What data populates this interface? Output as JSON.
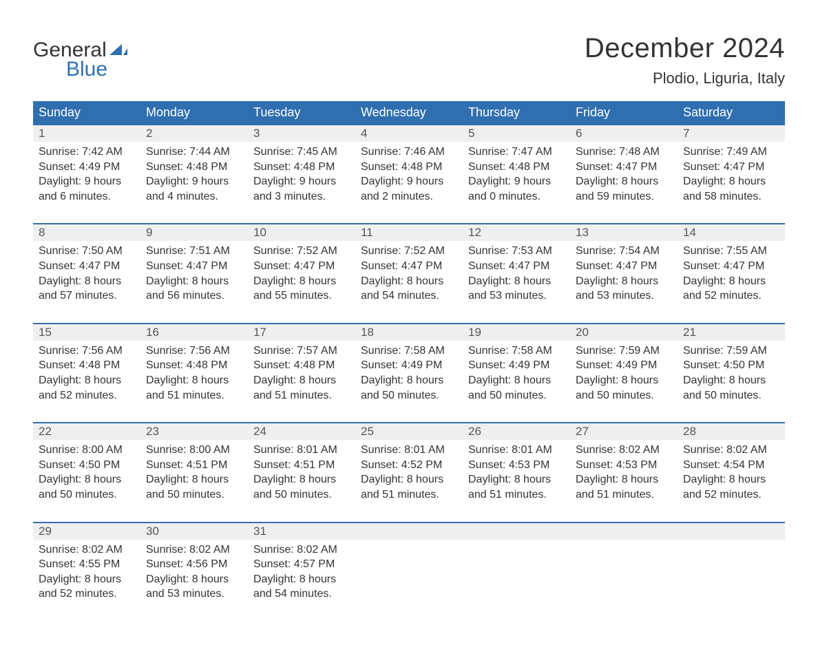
{
  "logo": {
    "word1": "General",
    "word2": "Blue",
    "word1_color": "#333333",
    "word2_color": "#2f6fb0",
    "sail_color": "#2f6fb0"
  },
  "title": "December 2024",
  "location": "Plodio, Liguria, Italy",
  "colors": {
    "header_bg": "#2f6fb0",
    "header_text": "#ffffff",
    "daynum_bg": "#efefef",
    "daynum_border": "#2f6fb0",
    "text": "#333333",
    "background": "#ffffff"
  },
  "typography": {
    "title_fontsize": 40,
    "location_fontsize": 22,
    "header_fontsize": 18,
    "daynum_fontsize": 17,
    "body_fontsize": 16,
    "font_family": "Arial, Helvetica, sans-serif"
  },
  "day_headers": [
    "Sunday",
    "Monday",
    "Tuesday",
    "Wednesday",
    "Thursday",
    "Friday",
    "Saturday"
  ],
  "weeks": [
    [
      {
        "num": "1",
        "sunrise": "Sunrise: 7:42 AM",
        "sunset": "Sunset: 4:49 PM",
        "dl1": "Daylight: 9 hours",
        "dl2": "and 6 minutes."
      },
      {
        "num": "2",
        "sunrise": "Sunrise: 7:44 AM",
        "sunset": "Sunset: 4:48 PM",
        "dl1": "Daylight: 9 hours",
        "dl2": "and 4 minutes."
      },
      {
        "num": "3",
        "sunrise": "Sunrise: 7:45 AM",
        "sunset": "Sunset: 4:48 PM",
        "dl1": "Daylight: 9 hours",
        "dl2": "and 3 minutes."
      },
      {
        "num": "4",
        "sunrise": "Sunrise: 7:46 AM",
        "sunset": "Sunset: 4:48 PM",
        "dl1": "Daylight: 9 hours",
        "dl2": "and 2 minutes."
      },
      {
        "num": "5",
        "sunrise": "Sunrise: 7:47 AM",
        "sunset": "Sunset: 4:48 PM",
        "dl1": "Daylight: 9 hours",
        "dl2": "and 0 minutes."
      },
      {
        "num": "6",
        "sunrise": "Sunrise: 7:48 AM",
        "sunset": "Sunset: 4:47 PM",
        "dl1": "Daylight: 8 hours",
        "dl2": "and 59 minutes."
      },
      {
        "num": "7",
        "sunrise": "Sunrise: 7:49 AM",
        "sunset": "Sunset: 4:47 PM",
        "dl1": "Daylight: 8 hours",
        "dl2": "and 58 minutes."
      }
    ],
    [
      {
        "num": "8",
        "sunrise": "Sunrise: 7:50 AM",
        "sunset": "Sunset: 4:47 PM",
        "dl1": "Daylight: 8 hours",
        "dl2": "and 57 minutes."
      },
      {
        "num": "9",
        "sunrise": "Sunrise: 7:51 AM",
        "sunset": "Sunset: 4:47 PM",
        "dl1": "Daylight: 8 hours",
        "dl2": "and 56 minutes."
      },
      {
        "num": "10",
        "sunrise": "Sunrise: 7:52 AM",
        "sunset": "Sunset: 4:47 PM",
        "dl1": "Daylight: 8 hours",
        "dl2": "and 55 minutes."
      },
      {
        "num": "11",
        "sunrise": "Sunrise: 7:52 AM",
        "sunset": "Sunset: 4:47 PM",
        "dl1": "Daylight: 8 hours",
        "dl2": "and 54 minutes."
      },
      {
        "num": "12",
        "sunrise": "Sunrise: 7:53 AM",
        "sunset": "Sunset: 4:47 PM",
        "dl1": "Daylight: 8 hours",
        "dl2": "and 53 minutes."
      },
      {
        "num": "13",
        "sunrise": "Sunrise: 7:54 AM",
        "sunset": "Sunset: 4:47 PM",
        "dl1": "Daylight: 8 hours",
        "dl2": "and 53 minutes."
      },
      {
        "num": "14",
        "sunrise": "Sunrise: 7:55 AM",
        "sunset": "Sunset: 4:47 PM",
        "dl1": "Daylight: 8 hours",
        "dl2": "and 52 minutes."
      }
    ],
    [
      {
        "num": "15",
        "sunrise": "Sunrise: 7:56 AM",
        "sunset": "Sunset: 4:48 PM",
        "dl1": "Daylight: 8 hours",
        "dl2": "and 52 minutes."
      },
      {
        "num": "16",
        "sunrise": "Sunrise: 7:56 AM",
        "sunset": "Sunset: 4:48 PM",
        "dl1": "Daylight: 8 hours",
        "dl2": "and 51 minutes."
      },
      {
        "num": "17",
        "sunrise": "Sunrise: 7:57 AM",
        "sunset": "Sunset: 4:48 PM",
        "dl1": "Daylight: 8 hours",
        "dl2": "and 51 minutes."
      },
      {
        "num": "18",
        "sunrise": "Sunrise: 7:58 AM",
        "sunset": "Sunset: 4:49 PM",
        "dl1": "Daylight: 8 hours",
        "dl2": "and 50 minutes."
      },
      {
        "num": "19",
        "sunrise": "Sunrise: 7:58 AM",
        "sunset": "Sunset: 4:49 PM",
        "dl1": "Daylight: 8 hours",
        "dl2": "and 50 minutes."
      },
      {
        "num": "20",
        "sunrise": "Sunrise: 7:59 AM",
        "sunset": "Sunset: 4:49 PM",
        "dl1": "Daylight: 8 hours",
        "dl2": "and 50 minutes."
      },
      {
        "num": "21",
        "sunrise": "Sunrise: 7:59 AM",
        "sunset": "Sunset: 4:50 PM",
        "dl1": "Daylight: 8 hours",
        "dl2": "and 50 minutes."
      }
    ],
    [
      {
        "num": "22",
        "sunrise": "Sunrise: 8:00 AM",
        "sunset": "Sunset: 4:50 PM",
        "dl1": "Daylight: 8 hours",
        "dl2": "and 50 minutes."
      },
      {
        "num": "23",
        "sunrise": "Sunrise: 8:00 AM",
        "sunset": "Sunset: 4:51 PM",
        "dl1": "Daylight: 8 hours",
        "dl2": "and 50 minutes."
      },
      {
        "num": "24",
        "sunrise": "Sunrise: 8:01 AM",
        "sunset": "Sunset: 4:51 PM",
        "dl1": "Daylight: 8 hours",
        "dl2": "and 50 minutes."
      },
      {
        "num": "25",
        "sunrise": "Sunrise: 8:01 AM",
        "sunset": "Sunset: 4:52 PM",
        "dl1": "Daylight: 8 hours",
        "dl2": "and 51 minutes."
      },
      {
        "num": "26",
        "sunrise": "Sunrise: 8:01 AM",
        "sunset": "Sunset: 4:53 PM",
        "dl1": "Daylight: 8 hours",
        "dl2": "and 51 minutes."
      },
      {
        "num": "27",
        "sunrise": "Sunrise: 8:02 AM",
        "sunset": "Sunset: 4:53 PM",
        "dl1": "Daylight: 8 hours",
        "dl2": "and 51 minutes."
      },
      {
        "num": "28",
        "sunrise": "Sunrise: 8:02 AM",
        "sunset": "Sunset: 4:54 PM",
        "dl1": "Daylight: 8 hours",
        "dl2": "and 52 minutes."
      }
    ],
    [
      {
        "num": "29",
        "sunrise": "Sunrise: 8:02 AM",
        "sunset": "Sunset: 4:55 PM",
        "dl1": "Daylight: 8 hours",
        "dl2": "and 52 minutes."
      },
      {
        "num": "30",
        "sunrise": "Sunrise: 8:02 AM",
        "sunset": "Sunset: 4:56 PM",
        "dl1": "Daylight: 8 hours",
        "dl2": "and 53 minutes."
      },
      {
        "num": "31",
        "sunrise": "Sunrise: 8:02 AM",
        "sunset": "Sunset: 4:57 PM",
        "dl1": "Daylight: 8 hours",
        "dl2": "and 54 minutes."
      },
      null,
      null,
      null,
      null
    ]
  ]
}
